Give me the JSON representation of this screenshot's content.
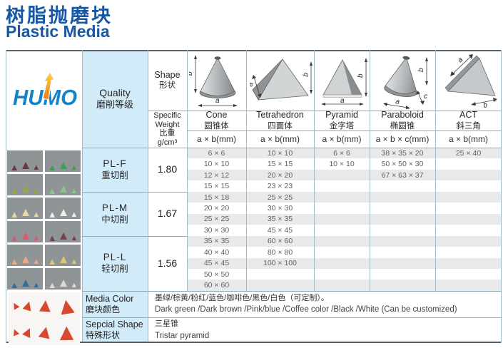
{
  "page": {
    "title_zh": "树脂抛磨块",
    "title_en": "Plastic Media"
  },
  "logo": {
    "text": "HUMO"
  },
  "table": {
    "quality_header": {
      "en": "Quality",
      "zh": "磨削等级"
    },
    "shape_header": {
      "en": "Shape",
      "zh": "形状"
    },
    "specific_weight_header": {
      "en_line1": "Specific",
      "en_line2": "Weight",
      "zh": "比重",
      "unit": "g/cm³"
    },
    "dim_letters": {
      "a": "a",
      "b": "b",
      "c": "c"
    },
    "columns": [
      {
        "name_en": "Cone",
        "name_zh": "圆锥体",
        "dims": "a × b(mm)"
      },
      {
        "name_en": "Tetrahedron",
        "name_zh": "四面体",
        "dims": "a × b(mm)"
      },
      {
        "name_en": "Pyramid",
        "name_zh": "金字塔",
        "dims": "a × b(mm)"
      },
      {
        "name_en": "Paraboloid",
        "name_zh": "椭圆锥",
        "dims": "a × b × c(mm)"
      },
      {
        "name_en": "ACT",
        "name_zh": "斜三角",
        "dims": "a × b(mm)"
      }
    ],
    "quality_groups": [
      {
        "grade": "PL-F",
        "grade_zh": "重切削",
        "specific_weight": "1.80"
      },
      {
        "grade": "PL-M",
        "grade_zh": "中切削",
        "specific_weight": "1.67"
      },
      {
        "grade": "PL-L",
        "grade_zh": "轻切削",
        "specific_weight": "1.56"
      }
    ],
    "size_rows": [
      [
        "6 × 6",
        "10 × 10",
        "6 × 6",
        "38 × 35 × 20",
        "25 × 40"
      ],
      [
        "10 × 10",
        "15 × 15",
        "10 × 10",
        "50 × 50 × 30",
        ""
      ],
      [
        "12 × 12",
        "20 × 20",
        "",
        "67 × 63 × 37",
        ""
      ],
      [
        "15 × 15",
        "23 × 23",
        "",
        "",
        ""
      ],
      [
        "15 × 18",
        "25 × 25",
        "",
        "",
        ""
      ],
      [
        "20 × 20",
        "30 × 30",
        "",
        "",
        ""
      ],
      [
        "25 × 25",
        "35 × 35",
        "",
        "",
        ""
      ],
      [
        "30 × 30",
        "45 × 45",
        "",
        "",
        ""
      ],
      [
        "35 × 35",
        "60 × 60",
        "",
        "",
        ""
      ],
      [
        "40 × 40",
        "80 × 80",
        "",
        "",
        ""
      ],
      [
        "45 × 45",
        "100 × 100",
        "",
        "",
        ""
      ],
      [
        "50 × 50",
        "",
        "",
        "",
        ""
      ],
      [
        "60 × 60",
        "",
        "",
        "",
        ""
      ]
    ],
    "media_color": {
      "label_en": "Media Color",
      "label_zh": "磨块颜色",
      "value_zh": "墨绿/棕黄/粉红/蓝色/咖啡色/黑色/白色（可定制）。",
      "value_en": "Dark green /Dark brown /Pink/blue /Coffee color /Black /White (Can be customized)"
    },
    "special_shape": {
      "label_en": "Sepcial Shape",
      "label_zh": "特殊形状",
      "value_zh": "三星锥",
      "value_en": "Tristar pyramid"
    }
  },
  "colors": {
    "title_blue": "#1857a4",
    "logo_blue": "#1583c8",
    "logo_arrow": "#f69a1c",
    "panel_blue": "#d2ebf8",
    "row_stripe": "#e8e9e9",
    "border": "#93abb9",
    "frame": "#55616b"
  },
  "photos": {
    "thumbnails": [
      {
        "color": "#6b3642"
      },
      {
        "color": "#3fa055"
      },
      {
        "color": "#92a944"
      },
      {
        "color": "#86c78b"
      },
      {
        "color": "#ead9a8"
      },
      {
        "color": "#efefe8"
      },
      {
        "color": "#d8596e"
      },
      {
        "color": "#7c3f4c"
      },
      {
        "color": "#eda884"
      },
      {
        "color": "#dfc476"
      },
      {
        "color": "#2f6f9e"
      },
      {
        "color": "#dcd9cf"
      }
    ],
    "large": {
      "background": "#f7f6f4",
      "color": "#d6492f",
      "triangle_count": 8
    }
  }
}
